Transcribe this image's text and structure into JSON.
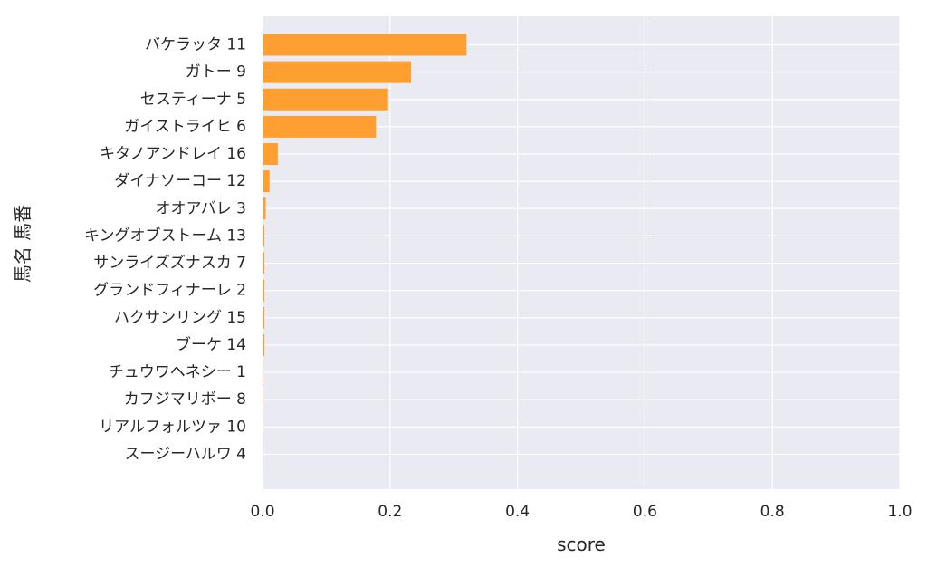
{
  "chart_data": {
    "type": "bar",
    "orientation": "horizontal",
    "xlabel": "score",
    "ylabel": "馬名 馬番",
    "xlim": [
      0,
      1.0
    ],
    "xticks": [
      "0.0",
      "0.2",
      "0.4",
      "0.6",
      "0.8",
      "1.0"
    ],
    "grid": true,
    "bar_color": "#ff9f32",
    "background_color": "#eaeaf2",
    "categories": [
      "バケラッタ 11",
      "ガトー 9",
      "セスティーナ 5",
      "ガイストライヒ 6",
      "キタノアンドレイ 16",
      "ダイナソーコー 12",
      "オオアバレ 3",
      "キングオブストーム 13",
      "サンライズズナスカ 7",
      "グランドフィナーレ 2",
      "ハクサンリング 15",
      "ブーケ 14",
      "チュウワヘネシー 1",
      "カフジマリボー 8",
      "リアルフォルツァ 10",
      "スージーハルワ 4"
    ],
    "values": [
      0.32,
      0.233,
      0.197,
      0.178,
      0.024,
      0.011,
      0.005,
      0.003,
      0.003,
      0.003,
      0.003,
      0.003,
      0.001,
      0.0005,
      0.0003,
      0.0002
    ]
  }
}
